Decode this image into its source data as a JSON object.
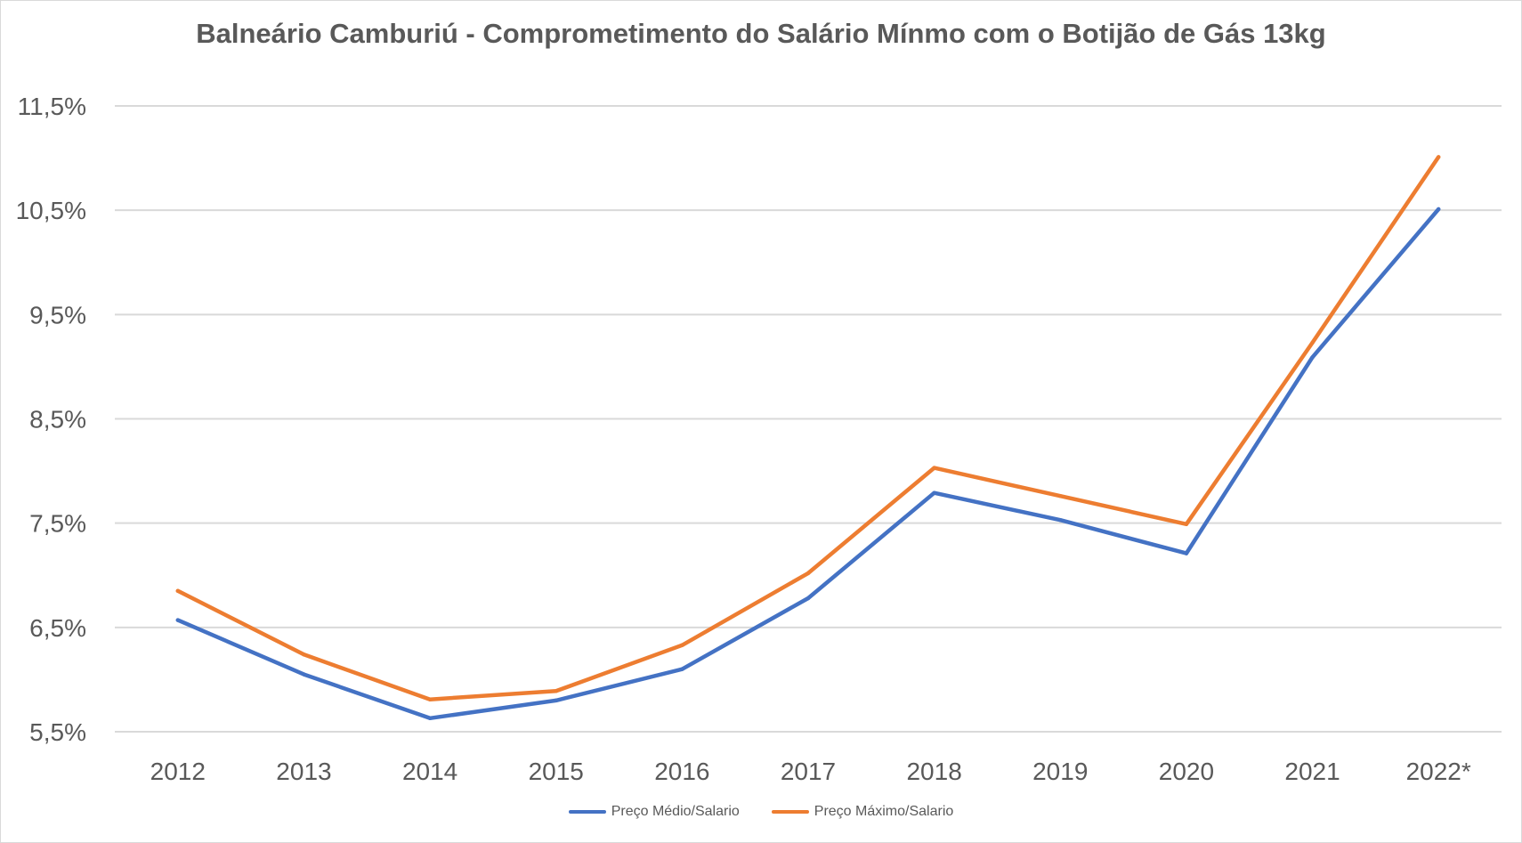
{
  "chart_data": {
    "type": "line",
    "title": "Balneário Camburiú - Comprometimento do Salário Mínmo com o Botijão de Gás 13kg",
    "xlabel": "",
    "ylabel": "",
    "categories": [
      "2012",
      "2013",
      "2014",
      "2015",
      "2016",
      "2017",
      "2018",
      "2019",
      "2020",
      "2021",
      "2022*"
    ],
    "series": [
      {
        "name": "Preço Médio/Salario",
        "color": "#4472c4",
        "values": [
          6.57,
          6.05,
          5.63,
          5.8,
          6.1,
          6.78,
          7.79,
          7.53,
          7.21,
          9.09,
          10.51
        ]
      },
      {
        "name": "Preço Máximo/Salario",
        "color": "#ed7d31",
        "values": [
          6.85,
          6.24,
          5.81,
          5.89,
          6.33,
          7.02,
          8.03,
          7.76,
          7.49,
          9.23,
          11.01
        ]
      }
    ],
    "yticks": [
      5.5,
      6.5,
      7.5,
      8.5,
      9.5,
      10.5,
      11.5
    ],
    "ytick_labels": [
      "5,5%",
      "6,5%",
      "7,5%",
      "8,5%",
      "9,5%",
      "10,5%",
      "11,5%"
    ],
    "ylim": [
      5.5,
      11.5
    ],
    "grid": true,
    "legend_position": "bottom"
  }
}
